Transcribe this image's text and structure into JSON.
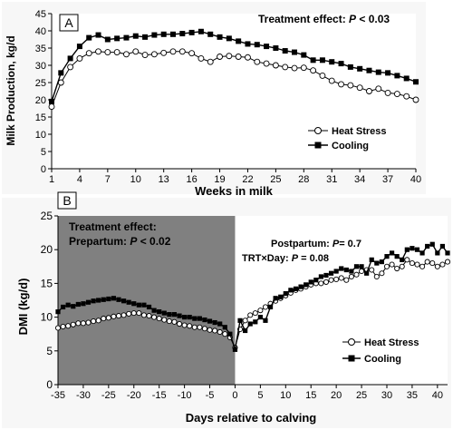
{
  "chart_data": [
    {
      "type": "line",
      "panel_label": "A",
      "annotation_prefix": "Treatment effect: ",
      "annotation_p": "P",
      "annotation_suffix": " < 0.03",
      "xlabel": "Weeks in milk",
      "ylabel": "Milk Production, kg/d",
      "xlim": [
        1,
        40
      ],
      "ylim": [
        0,
        45
      ],
      "x_ticks": [
        1,
        4,
        7,
        10,
        13,
        16,
        19,
        22,
        25,
        28,
        31,
        34,
        37,
        40
      ],
      "y_ticks": [
        0,
        5,
        10,
        15,
        20,
        25,
        30,
        35,
        40,
        45
      ],
      "legend_position": "lower-right",
      "series": [
        {
          "name": "Heat Stress",
          "marker": "open-circle",
          "x": [
            1,
            2,
            3,
            4,
            5,
            6,
            7,
            8,
            9,
            10,
            11,
            12,
            13,
            14,
            15,
            16,
            17,
            18,
            19,
            20,
            21,
            22,
            23,
            24,
            25,
            26,
            27,
            28,
            29,
            30,
            31,
            32,
            33,
            34,
            35,
            36,
            37,
            38,
            39,
            40
          ],
          "y": [
            18,
            25,
            29.5,
            32,
            33.5,
            34,
            33.8,
            33.8,
            33.2,
            34,
            33,
            33.2,
            33.6,
            34,
            34,
            33.5,
            32,
            31,
            32.5,
            32.7,
            32.5,
            32.3,
            31,
            30.5,
            30,
            29.5,
            29.2,
            29.3,
            28.5,
            27,
            25.5,
            24.5,
            24.2,
            23.5,
            22.5,
            23.2,
            22,
            21.7,
            21,
            20
          ]
        },
        {
          "name": "Cooling",
          "marker": "filled-square",
          "x": [
            1,
            2,
            3,
            4,
            5,
            6,
            7,
            8,
            9,
            10,
            11,
            12,
            13,
            14,
            15,
            16,
            17,
            18,
            19,
            20,
            21,
            22,
            23,
            24,
            25,
            26,
            27,
            28,
            29,
            30,
            31,
            32,
            33,
            34,
            35,
            36,
            37,
            38,
            39,
            40
          ],
          "y": [
            19.5,
            27.8,
            32,
            35.5,
            38,
            38.8,
            37.5,
            37.8,
            38,
            38.5,
            38.2,
            38.8,
            39,
            39,
            39.2,
            39.5,
            39.8,
            39,
            38.2,
            37.8,
            37,
            36.2,
            36,
            35.5,
            35,
            34.2,
            33.8,
            33,
            31.5,
            31.5,
            31,
            30.5,
            29.5,
            29,
            28.5,
            28,
            27.8,
            27,
            26.2,
            25.2
          ]
        }
      ]
    },
    {
      "type": "line",
      "panel_label": "B",
      "annotation_left_line1": "Treatment effect:",
      "annotation_left_line2_prefix": "Prepartum: ",
      "annotation_left_p": "P",
      "annotation_left_line2_suffix": " < 0.02",
      "annotation_right_line1_prefix": "Postpartum: ",
      "annotation_right_line1_p": "P",
      "annotation_right_line1_suffix": "= 0.7",
      "annotation_right_line2_prefix": "TRT×Day: ",
      "annotation_right_line2_p": "P",
      "annotation_right_line2_suffix": " = 0.08",
      "xlabel": "Days relative to calving",
      "ylabel": "DMI (kg/d)",
      "xlim": [
        -35,
        42
      ],
      "ylim": [
        0,
        25
      ],
      "x_ticks": [
        -35,
        -30,
        -25,
        -20,
        -15,
        -10,
        -5,
        0,
        5,
        10,
        15,
        20,
        25,
        30,
        35,
        40
      ],
      "y_ticks": [
        0,
        5,
        10,
        15,
        20,
        25
      ],
      "shaded_region": [
        -35,
        0
      ],
      "shaded_color": "#808080",
      "legend_position": "lower-right",
      "series": [
        {
          "name": "Heat Stress",
          "marker": "open-circle",
          "x": [
            -35,
            -34,
            -33,
            -32,
            -31,
            -30,
            -29,
            -28,
            -27,
            -26,
            -25,
            -24,
            -23,
            -22,
            -21,
            -20,
            -19,
            -18,
            -17,
            -16,
            -15,
            -14,
            -13,
            -12,
            -11,
            -10,
            -9,
            -8,
            -7,
            -6,
            -5,
            -4,
            -3,
            -2,
            -1,
            0,
            1,
            2,
            3,
            4,
            5,
            6,
            7,
            8,
            9,
            10,
            11,
            12,
            13,
            14,
            15,
            16,
            17,
            18,
            19,
            20,
            21,
            22,
            23,
            24,
            25,
            26,
            27,
            28,
            29,
            30,
            31,
            32,
            33,
            34,
            35,
            36,
            37,
            38,
            39,
            40,
            41,
            42
          ],
          "y": [
            8.4,
            8.6,
            8.7,
            8.9,
            9.1,
            9.1,
            9.2,
            9.4,
            9.5,
            9.8,
            9.9,
            10.1,
            10.2,
            10.3,
            10.5,
            10.6,
            10.6,
            10.3,
            10.2,
            10.0,
            9.8,
            9.6,
            9.4,
            9.3,
            9.0,
            8.8,
            8.7,
            8.5,
            8.5,
            8.3,
            8.1,
            8.0,
            7.8,
            7.5,
            7.0,
            5.5,
            8.2,
            9.5,
            10.3,
            10.6,
            11.0,
            11.5,
            12.0,
            12.4,
            12.8,
            13.2,
            13.6,
            14.0,
            14.2,
            14.5,
            14.8,
            15.0,
            15.0,
            15.2,
            15.5,
            15.6,
            15.8,
            15.5,
            16.0,
            16.3,
            16.8,
            17.0,
            17.0,
            16.0,
            16.5,
            17.5,
            17.8,
            17.2,
            17.5,
            18.5,
            18.0,
            17.8,
            17.5,
            18.2,
            18.0,
            17.5,
            17.8,
            18.2
          ]
        },
        {
          "name": "Cooling",
          "marker": "filled-square",
          "x": [
            -35,
            -34,
            -33,
            -32,
            -31,
            -30,
            -29,
            -28,
            -27,
            -26,
            -25,
            -24,
            -23,
            -22,
            -21,
            -20,
            -19,
            -18,
            -17,
            -16,
            -15,
            -14,
            -13,
            -12,
            -11,
            -10,
            -9,
            -8,
            -7,
            -6,
            -5,
            -4,
            -3,
            -2,
            -1,
            0,
            1,
            2,
            3,
            4,
            5,
            6,
            7,
            8,
            9,
            10,
            11,
            12,
            13,
            14,
            15,
            16,
            17,
            18,
            19,
            20,
            21,
            22,
            23,
            24,
            25,
            26,
            27,
            28,
            29,
            30,
            31,
            32,
            33,
            34,
            35,
            36,
            37,
            38,
            39,
            40,
            41,
            42
          ],
          "y": [
            10.8,
            11.5,
            11.8,
            11.6,
            11.9,
            12.0,
            12.2,
            12.4,
            12.5,
            12.6,
            12.7,
            12.8,
            12.6,
            12.4,
            12.2,
            12.0,
            11.8,
            11.8,
            11.5,
            11.0,
            10.8,
            10.6,
            10.4,
            10.4,
            10.2,
            10.0,
            10.0,
            9.8,
            9.8,
            9.6,
            9.4,
            9.2,
            9.0,
            8.5,
            7.5,
            5.2,
            9.5,
            8.0,
            9.0,
            9.3,
            10.0,
            9.5,
            11.5,
            12.8,
            13.0,
            13.5,
            14.0,
            14.2,
            14.5,
            14.8,
            15.2,
            15.5,
            16.0,
            16.2,
            16.5,
            16.8,
            17.2,
            17.0,
            16.8,
            17.5,
            17.5,
            16.5,
            18.5,
            18.0,
            18.2,
            19.0,
            19.5,
            19.0,
            18.5,
            20.0,
            20.2,
            20.0,
            19.5,
            20.5,
            20.8,
            19.5,
            20.5,
            19.5
          ]
        }
      ]
    }
  ]
}
